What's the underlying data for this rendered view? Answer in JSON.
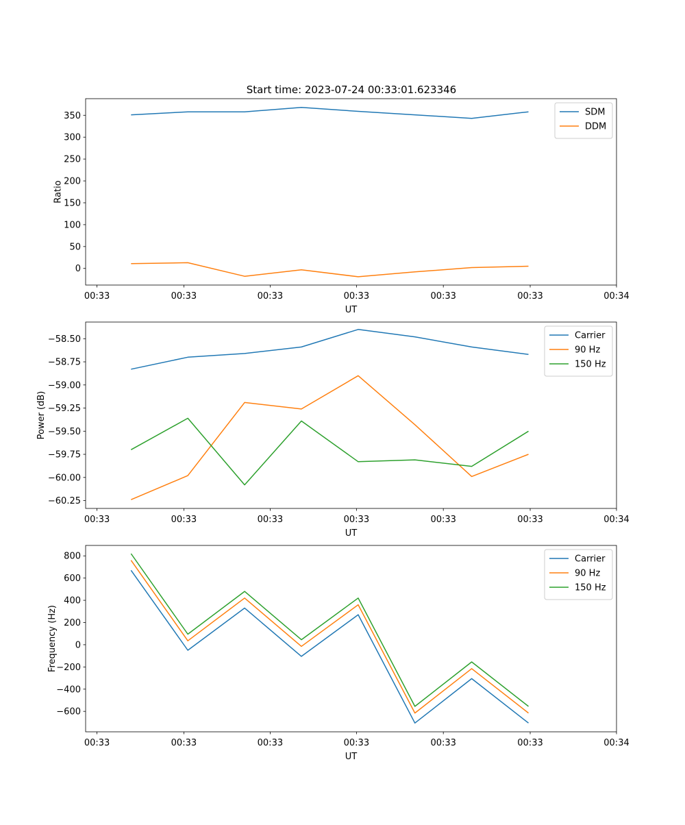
{
  "figure_title": "Start time: 2023-07-24 00:33:01.623346",
  "colors": {
    "blue": "#1f77b4",
    "orange": "#ff7f0e",
    "green": "#2ca02c"
  },
  "chart_data": [
    {
      "type": "line",
      "title": "Start time: 2023-07-24 00:33:01.623346",
      "xlabel": "UT",
      "ylabel": "Ratio",
      "x": [
        1,
        2,
        3,
        4,
        5,
        6,
        7,
        8
      ],
      "xlim": [
        0.2,
        9.55
      ],
      "x_ticks": [
        0.4,
        1.93,
        3.45,
        4.97,
        6.5,
        8.03,
        9.55
      ],
      "x_tick_labels": [
        "00:33",
        "00:33",
        "00:33",
        "00:33",
        "00:33",
        "00:33",
        "00:34"
      ],
      "ylim": [
        -38,
        388
      ],
      "y_ticks": [
        0,
        50,
        100,
        150,
        200,
        250,
        300,
        350
      ],
      "y_tick_labels": [
        "0",
        "50",
        "100",
        "150",
        "200",
        "250",
        "300",
        "350"
      ],
      "legend_position": "top-right",
      "series": [
        {
          "name": "SDM",
          "color": "#1f77b4",
          "values": [
            351,
            358,
            358,
            368,
            359,
            351,
            343,
            358
          ]
        },
        {
          "name": "DDM",
          "color": "#ff7f0e",
          "values": [
            11,
            13,
            -18,
            -3,
            -19,
            -8,
            2,
            5
          ]
        }
      ]
    },
    {
      "type": "line",
      "xlabel": "UT",
      "ylabel": "Power (dB)",
      "x": [
        1,
        2,
        3,
        4,
        5,
        6,
        7,
        8
      ],
      "xlim": [
        0.2,
        9.55
      ],
      "x_ticks": [
        0.4,
        1.93,
        3.45,
        4.97,
        6.5,
        8.03,
        9.55
      ],
      "x_tick_labels": [
        "00:33",
        "00:33",
        "00:33",
        "00:33",
        "00:33",
        "00:33",
        "00:34"
      ],
      "ylim": [
        -60.335,
        -58.32
      ],
      "y_ticks": [
        -60.25,
        -60.0,
        -59.75,
        -59.5,
        -59.25,
        -59.0,
        -58.75,
        -58.5
      ],
      "y_tick_labels": [
        "−60.25",
        "−60.00",
        "−59.75",
        "−59.50",
        "−59.25",
        "−59.00",
        "−58.75",
        "−58.50"
      ],
      "legend_position": "top-right",
      "series": [
        {
          "name": "Carrier",
          "color": "#1f77b4",
          "values": [
            -58.83,
            -58.7,
            -58.66,
            -58.59,
            -58.4,
            -58.48,
            -58.59,
            -58.67
          ]
        },
        {
          "name": "90 Hz",
          "color": "#ff7f0e",
          "values": [
            -60.24,
            -59.98,
            -59.19,
            -59.26,
            -58.9,
            -59.43,
            -59.99,
            -59.75
          ]
        },
        {
          "name": "150 Hz",
          "color": "#2ca02c",
          "values": [
            -59.7,
            -59.36,
            -60.08,
            -59.39,
            -59.83,
            -59.81,
            -59.88,
            -59.5
          ]
        }
      ]
    },
    {
      "type": "line",
      "xlabel": "UT",
      "ylabel": "Frequency (Hz)",
      "x": [
        1,
        2,
        3,
        4,
        5,
        6,
        7,
        8
      ],
      "xlim": [
        0.2,
        9.55
      ],
      "x_ticks": [
        0.4,
        1.93,
        3.45,
        4.97,
        6.5,
        8.03,
        9.55
      ],
      "x_tick_labels": [
        "00:33",
        "00:33",
        "00:33",
        "00:33",
        "00:33",
        "00:33",
        "00:34"
      ],
      "ylim": [
        -784,
        894
      ],
      "y_ticks": [
        -600,
        -400,
        -200,
        0,
        200,
        400,
        600,
        800
      ],
      "y_tick_labels": [
        "−600",
        "−400",
        "−200",
        "0",
        "200",
        "400",
        "600",
        "800"
      ],
      "legend_position": "top-right",
      "series": [
        {
          "name": "Carrier",
          "color": "#1f77b4",
          "values": [
            670,
            -50,
            330,
            -105,
            270,
            -705,
            -305,
            -705
          ]
        },
        {
          "name": "90 Hz",
          "color": "#ff7f0e",
          "values": [
            760,
            35,
            420,
            -15,
            360,
            -615,
            -215,
            -615
          ]
        },
        {
          "name": "150 Hz",
          "color": "#2ca02c",
          "values": [
            820,
            95,
            480,
            45,
            420,
            -555,
            -155,
            -555
          ]
        }
      ]
    }
  ]
}
